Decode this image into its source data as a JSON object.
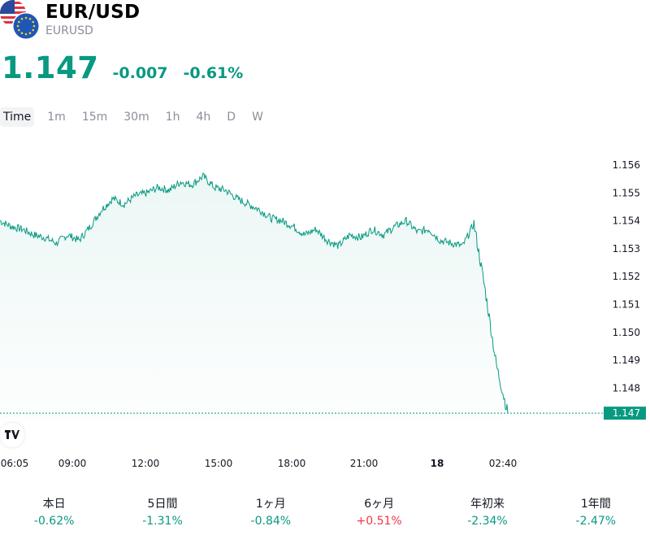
{
  "symbol": {
    "title": "EUR/USD",
    "ticker": "EURUSD"
  },
  "price": {
    "last": "1.147",
    "change": "-0.007",
    "change_pct": "-0.61%"
  },
  "colors": {
    "up": "#089981",
    "down": "#f23645",
    "line": "#089981"
  },
  "tabs": [
    "Time",
    "1m",
    "15m",
    "30m",
    "1h",
    "4h",
    "D",
    "W"
  ],
  "active_tab": "Time",
  "chart_data": {
    "type": "area",
    "x_tick_labels": [
      "06:05",
      "09:00",
      "12:00",
      "15:00",
      "18:00",
      "21:00",
      "18",
      "02:40"
    ],
    "y_tick_labels": [
      "1.156",
      "1.155",
      "1.154",
      "1.153",
      "1.152",
      "1.151",
      "1.150",
      "1.149",
      "1.148"
    ],
    "ylim": [
      1.1469,
      1.1565
    ],
    "last_value_label": "1.147",
    "last_value": 1.1471,
    "x": [
      "06:05",
      "06:30",
      "07:00",
      "07:30",
      "08:00",
      "08:30",
      "09:00",
      "09:30",
      "10:00",
      "10:30",
      "11:00",
      "11:30",
      "12:00",
      "12:30",
      "13:00",
      "13:30",
      "14:00",
      "14:30",
      "15:00",
      "15:15",
      "15:30",
      "16:00",
      "16:30",
      "17:00",
      "17:30",
      "18:00",
      "18:30",
      "19:00",
      "19:30",
      "20:00",
      "20:30",
      "21:00",
      "21:30",
      "22:00",
      "22:30",
      "23:00",
      "23:30",
      "00:00",
      "00:30",
      "01:00",
      "01:30",
      "02:00",
      "02:10",
      "02:20",
      "02:30",
      "02:40"
    ],
    "series": [
      {
        "values": [
          1.154,
          1.1538,
          1.1537,
          1.1535,
          1.1534,
          1.1532,
          1.1535,
          1.1533,
          1.1538,
          1.1544,
          1.1548,
          1.1546,
          1.1549,
          1.155,
          1.1552,
          1.1551,
          1.1554,
          1.1553,
          1.1556,
          1.1552,
          1.1551,
          1.1548,
          1.1546,
          1.1544,
          1.1541,
          1.154,
          1.1538,
          1.1535,
          1.1537,
          1.1533,
          1.1531,
          1.1535,
          1.1534,
          1.1537,
          1.1535,
          1.1538,
          1.154,
          1.1536,
          1.1537,
          1.1533,
          1.1532,
          1.1531,
          1.1539,
          1.1515,
          1.1488,
          1.1471
        ]
      }
    ]
  },
  "performance": [
    {
      "label": "本日",
      "value": "-0.62%",
      "dir": "down"
    },
    {
      "label": "5日間",
      "value": "-1.31%",
      "dir": "down"
    },
    {
      "label": "1ヶ月",
      "value": "-0.84%",
      "dir": "down"
    },
    {
      "label": "6ヶ月",
      "value": "+0.51%",
      "dir": "up"
    },
    {
      "label": "年初来",
      "value": "-2.34%",
      "dir": "down"
    },
    {
      "label": "1年間",
      "value": "-2.47%",
      "dir": "down"
    }
  ]
}
